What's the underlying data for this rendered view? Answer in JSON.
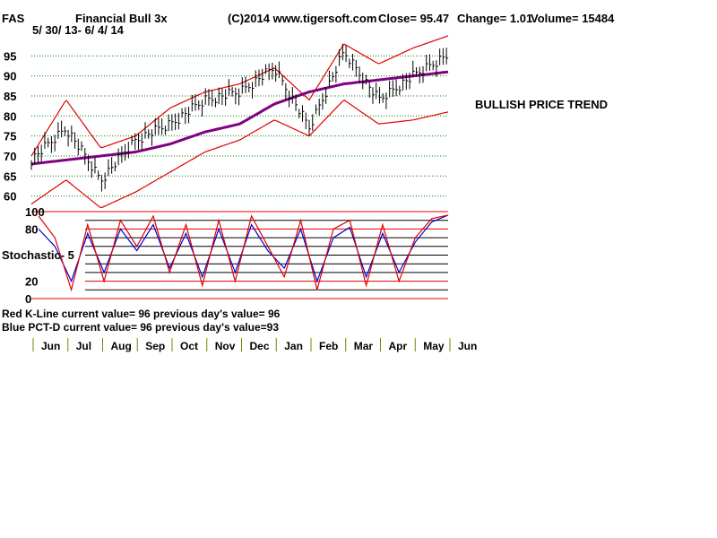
{
  "header": {
    "ticker": "FAS",
    "name": "Financial Bull 3x",
    "date_range": "5/ 30/ 13- 6/ 4/ 14",
    "source": "(C)2014 www.tigersoft.com",
    "close": "Close=  95.47",
    "change": "Change= 1.01",
    "volume": "Volume= 15484"
  },
  "annotation": "BULLISH PRICE TREND",
  "stochastic_label": "Stochastic- 5",
  "readouts": {
    "red_k": "Red K-Line current value= 96  previous day's value= 96",
    "blue_d": "Blue PCT-D current value= 96  previous day's value=93"
  },
  "colors": {
    "price_bars": "#000000",
    "bands": "#e00000",
    "moving_average": "#800080",
    "k_line": "#e00000",
    "d_line": "#0000cc",
    "gridline": "#008000"
  },
  "chart_data": [
    {
      "type": "line",
      "title": "Financial Bull 3x",
      "x": [
        "Jun",
        "Jul",
        "Aug",
        "Sep",
        "Oct",
        "Nov",
        "Dec",
        "Jan",
        "Feb",
        "Mar",
        "Apr",
        "May",
        "Jun"
      ],
      "ylim": [
        57,
        100
      ],
      "yticks": [
        60,
        65,
        70,
        75,
        80,
        85,
        90,
        95
      ],
      "grid": true,
      "series": [
        {
          "name": "price",
          "values": [
            69,
            77,
            64,
            74,
            78,
            84,
            86,
            92,
            77,
            96,
            84,
            90,
            95.47
          ]
        },
        {
          "name": "upper band",
          "values": [
            70,
            84,
            72,
            75,
            82,
            86,
            88,
            92,
            84,
            98,
            93,
            97,
            100
          ]
        },
        {
          "name": "lower band",
          "values": [
            58,
            64,
            57,
            61,
            66,
            71,
            74,
            79,
            75,
            84,
            78,
            79,
            81
          ]
        },
        {
          "name": "moving average",
          "values": [
            68,
            69,
            70,
            71,
            73,
            76,
            78,
            83,
            86,
            88,
            89,
            90,
            91
          ]
        }
      ]
    },
    {
      "type": "line",
      "ylim": [
        0,
        100
      ],
      "yticks": [
        0,
        20,
        80,
        100
      ],
      "series": [
        {
          "name": "Red K-Line",
          "values": [
            95,
            70,
            10,
            85,
            20,
            90,
            60,
            95,
            30,
            85,
            15,
            90,
            20,
            95,
            60,
            25,
            90,
            10,
            80,
            90,
            15,
            85,
            20,
            70,
            92,
            96
          ]
        },
        {
          "name": "Blue PCT-D",
          "values": [
            80,
            60,
            20,
            75,
            30,
            80,
            55,
            85,
            35,
            75,
            25,
            80,
            30,
            85,
            55,
            35,
            80,
            20,
            70,
            82,
            25,
            75,
            30,
            65,
            88,
            96
          ]
        }
      ]
    }
  ]
}
